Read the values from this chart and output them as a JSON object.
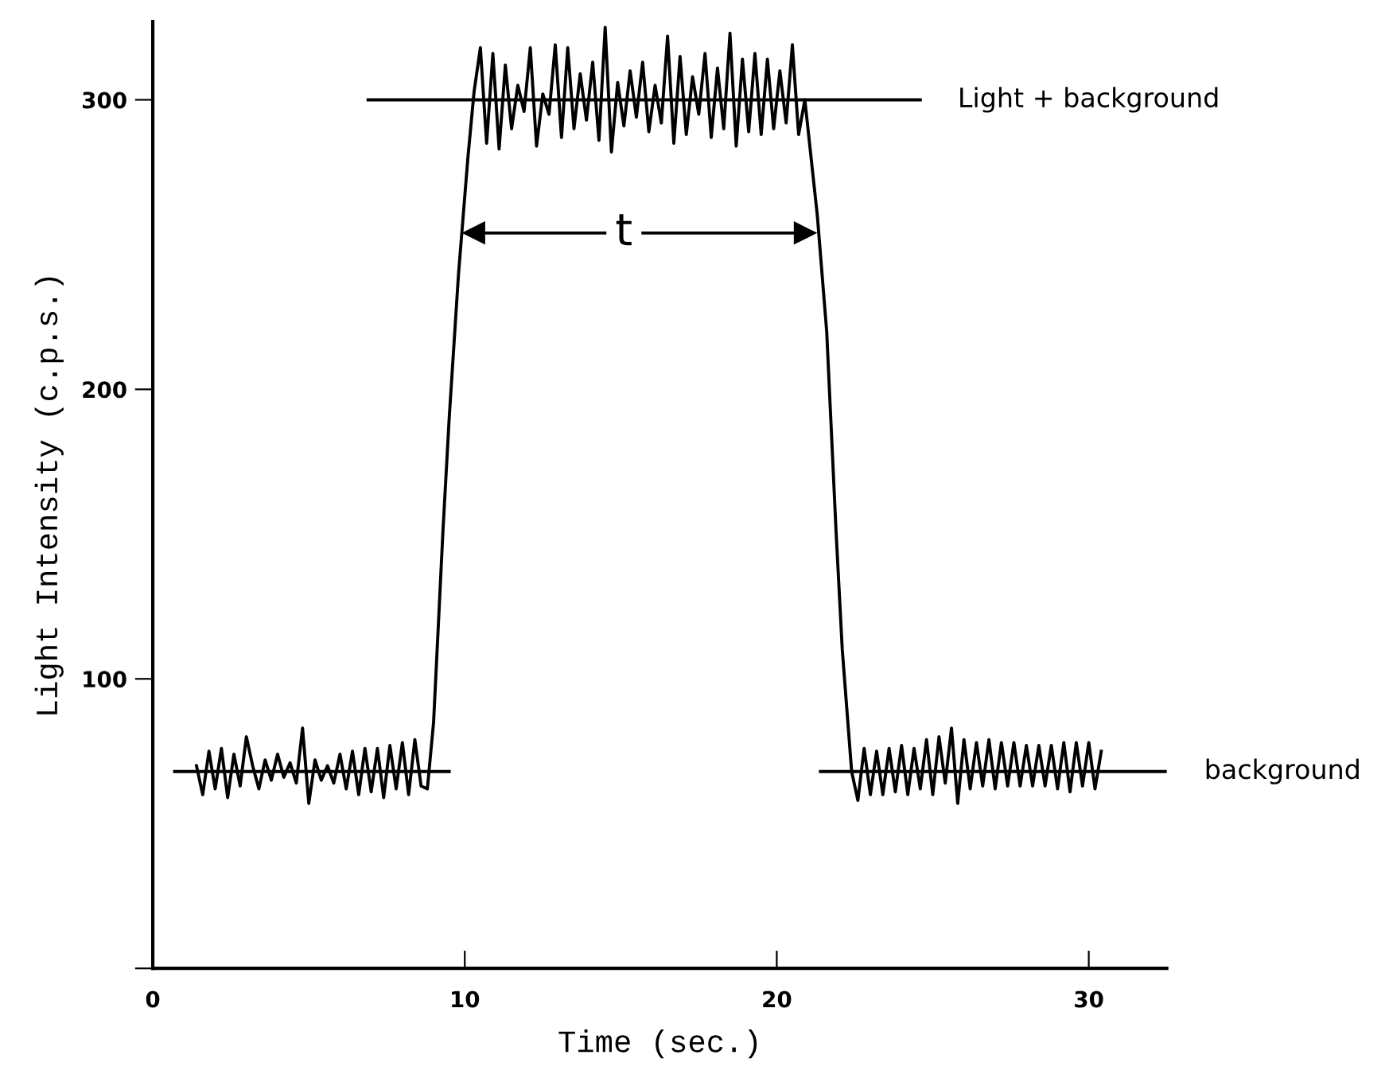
{
  "chart_data": {
    "type": "line",
    "xlabel": "Time (sec.)",
    "ylabel": "Light Intensity (c.p.s.)",
    "xlim": [
      0,
      32.5
    ],
    "ylim": [
      0,
      327
    ],
    "xticks": [
      0,
      10,
      20,
      30
    ],
    "yticks": [
      {
        "value": 0,
        "label": null
      },
      100,
      200,
      300
    ],
    "grid": false,
    "legend": false,
    "series": [
      {
        "color": "#000000",
        "x": [
          1.4,
          1.6,
          1.8,
          2.0,
          2.2,
          2.4,
          2.6,
          2.8,
          3.0,
          3.2,
          3.4,
          3.6,
          3.8,
          4.0,
          4.2,
          4.4,
          4.6,
          4.8,
          5.0,
          5.2,
          5.4,
          5.6,
          5.8,
          6.0,
          6.2,
          6.4,
          6.6,
          6.8,
          7.0,
          7.2,
          7.4,
          7.6,
          7.8,
          8.0,
          8.2,
          8.4,
          8.6,
          8.8,
          9.0,
          9.3,
          9.5,
          9.8,
          10.1,
          10.3,
          10.5,
          10.7,
          10.9,
          11.1,
          11.3,
          11.5,
          11.7,
          11.9,
          12.1,
          12.3,
          12.5,
          12.7,
          12.9,
          13.1,
          13.3,
          13.5,
          13.7,
          13.9,
          14.1,
          14.3,
          14.5,
          14.7,
          14.9,
          15.1,
          15.3,
          15.5,
          15.7,
          15.9,
          16.1,
          16.3,
          16.5,
          16.7,
          16.9,
          17.1,
          17.3,
          17.5,
          17.7,
          17.9,
          18.1,
          18.3,
          18.5,
          18.7,
          18.9,
          19.1,
          19.3,
          19.5,
          19.7,
          19.9,
          20.1,
          20.3,
          20.5,
          20.7,
          20.9,
          21.3,
          21.6,
          21.9,
          22.1,
          22.4,
          22.6,
          22.8,
          23.0,
          23.2,
          23.4,
          23.6,
          23.8,
          24.0,
          24.2,
          24.4,
          24.6,
          24.8,
          25.0,
          25.2,
          25.4,
          25.6,
          25.8,
          26.0,
          26.2,
          26.4,
          26.6,
          26.8,
          27.0,
          27.2,
          27.4,
          27.6,
          27.8,
          28.0,
          28.2,
          28.4,
          28.6,
          28.8,
          29.0,
          29.2,
          29.4,
          29.6,
          29.8,
          30.0,
          30.2,
          30.4
        ],
        "values": [
          70,
          60,
          75,
          62,
          76,
          59,
          74,
          63,
          80,
          70,
          62,
          72,
          65,
          74,
          66,
          71,
          64,
          83,
          57,
          72,
          65,
          70,
          64,
          74,
          62,
          75,
          60,
          76,
          61,
          76,
          59,
          77,
          62,
          78,
          60,
          79,
          63,
          62,
          85,
          151,
          190,
          240,
          280,
          303,
          318,
          285,
          316,
          283,
          312,
          290,
          305,
          296,
          318,
          284,
          302,
          295,
          319,
          287,
          318,
          290,
          309,
          293,
          313,
          286,
          325,
          282,
          306,
          291,
          310,
          294,
          313,
          289,
          305,
          292,
          322,
          285,
          315,
          288,
          308,
          295,
          316,
          287,
          311,
          290,
          323,
          284,
          314,
          289,
          316,
          288,
          314,
          290,
          310,
          292,
          319,
          288,
          300,
          260,
          220,
          151,
          110,
          68,
          58,
          76,
          60,
          75,
          60,
          76,
          61,
          77,
          60,
          76,
          62,
          79,
          60,
          80,
          64,
          83,
          57,
          79,
          62,
          78,
          63,
          79,
          62,
          78,
          63,
          78,
          63,
          77,
          63,
          77,
          63,
          77,
          62,
          78,
          61,
          78,
          63,
          78,
          62,
          75
        ]
      },
      {
        "name": "Light + background",
        "color": "#000000",
        "x": [
          6.9,
          24.6
        ],
        "values": [
          300,
          300
        ]
      },
      {
        "name": "background",
        "color": "#000000",
        "x": [
          0.7,
          9.5,
          15,
          21.4,
          32.5
        ],
        "values": [
          68,
          68,
          null,
          68,
          68
        ]
      },
      {
        "color": "#000000",
        "x": [
          10.3,
          20.9
        ],
        "values": [
          254,
          254
        ],
        "marker": "triangle"
      }
    ],
    "annotations": [
      {
        "text": "t",
        "x": 15.1,
        "y": 254
      }
    ]
  }
}
